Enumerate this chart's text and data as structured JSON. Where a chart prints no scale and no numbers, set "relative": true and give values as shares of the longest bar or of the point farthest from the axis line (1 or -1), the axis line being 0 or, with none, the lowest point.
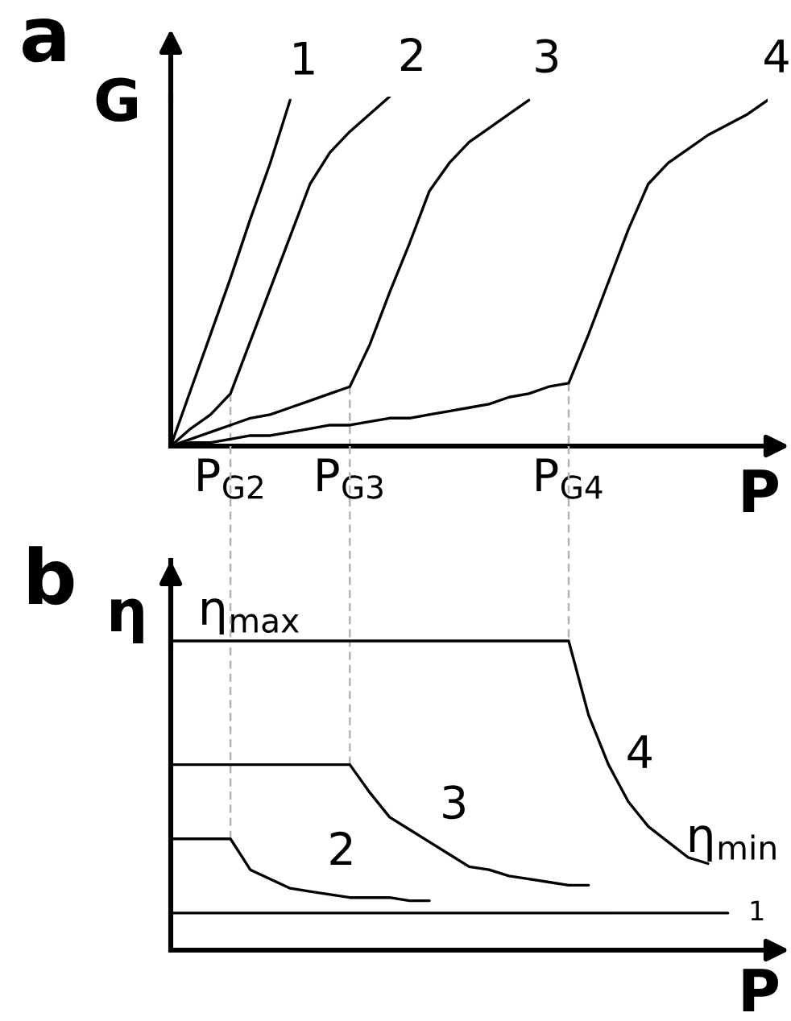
{
  "chart_data": [
    {
      "type": "line",
      "title": "a",
      "xlabel": "P",
      "ylabel": "G",
      "relative": true,
      "tick_labels": "x",
      "categories": [
        null,
        null,
        null,
        "P$_{G2}$",
        null,
        null,
        null,
        null,
        null,
        "P$_{G3}$",
        null,
        null,
        null,
        null,
        null,
        null,
        null,
        null,
        null,
        null,
        "P$_{G4}$",
        null,
        null,
        null,
        null,
        null,
        null,
        null,
        null,
        null,
        null
      ],
      "ref_lines": [
        {
          "axis": "x",
          "value": "P$_{G2}$",
          "color": "#b3b3b3",
          "line_style": "dashed"
        },
        {
          "axis": "x",
          "value": "P$_{G3}$",
          "color": "#b3b3b3",
          "line_style": "dashed"
        },
        {
          "axis": "x",
          "value": "P$_{G4}$",
          "color": "#b3b3b3",
          "line_style": "dashed"
        }
      ],
      "series": [
        {
          "name": "1",
          "color": "#000000",
          "values": [
            0,
            0.16,
            0.32,
            0.48,
            0.65,
            0.81,
            0.99,
            null,
            null,
            null,
            null,
            null,
            null,
            null,
            null,
            null,
            null,
            null,
            null,
            null,
            null,
            null,
            null,
            null,
            null,
            null,
            null,
            null,
            null,
            null,
            null
          ]
        },
        {
          "name": "2",
          "color": "#000000",
          "values": [
            0,
            0.05,
            0.09,
            0.15,
            0.3,
            0.45,
            0.6,
            0.75,
            0.84,
            0.9,
            0.95,
            1,
            null,
            null,
            null,
            null,
            null,
            null,
            null,
            null,
            null,
            null,
            null,
            null,
            null,
            null,
            null,
            null,
            null,
            null,
            null
          ]
        },
        {
          "name": "3",
          "color": "#000000",
          "values": [
            0,
            0.02,
            0.04,
            0.06,
            0.08,
            0.09,
            0.11,
            0.13,
            0.15,
            0.17,
            0.29,
            0.44,
            0.58,
            0.73,
            0.81,
            0.87,
            0.91,
            0.95,
            0.99,
            null,
            null,
            null,
            null,
            null,
            null,
            null,
            null,
            null,
            null,
            null,
            null
          ]
        },
        {
          "name": "4",
          "color": "#000000",
          "values": [
            0,
            0.01,
            0.01,
            0.02,
            0.03,
            0.03,
            0.04,
            0.05,
            0.06,
            0.06,
            0.07,
            0.08,
            0.08,
            0.09,
            0.1,
            0.11,
            0.12,
            0.14,
            0.15,
            0.17,
            0.18,
            0.32,
            0.47,
            0.62,
            0.75,
            0.81,
            0.85,
            0.89,
            0.92,
            0.95,
            0.99
          ]
        }
      ]
    },
    {
      "type": "line",
      "title": "b",
      "xlabel": "P",
      "ylabel": "η",
      "relative": true,
      "tick_labels": false,
      "categories": [
        null,
        null,
        null,
        "P$_{G2}$",
        null,
        null,
        null,
        null,
        null,
        "P$_{G3}$",
        null,
        null,
        null,
        null,
        null,
        null,
        null,
        null,
        null,
        null,
        "P$_{G4}$",
        null,
        null,
        null,
        null,
        null,
        null,
        null,
        null,
        null,
        null
      ],
      "ref_lines": [
        {
          "axis": "x",
          "value": "P$_{G2}$",
          "color": "#b3b3b3",
          "line_style": "dashed"
        },
        {
          "axis": "x",
          "value": "P$_{G3}$",
          "color": "#b3b3b3",
          "line_style": "dashed"
        }
      ],
      "annotations": [
        {
          "text": "η$_{max}$",
          "y": 1
        },
        "η$_{min}$"
      ],
      "series": [
        {
          "name": "1",
          "color": "#000000",
          "values": [
            0.12,
            0.12,
            0.12,
            0.12,
            0.12,
            0.12,
            0.12,
            0.12,
            0.12,
            0.12,
            0.12,
            0.12,
            0.12,
            0.12,
            0.12,
            0.12,
            0.12,
            0.12,
            0.12,
            0.12,
            0.12,
            0.12,
            0.12,
            0.12,
            0.12,
            0.12,
            0.12,
            0.12,
            0.12,
            null,
            null
          ]
        },
        {
          "name": "2",
          "color": "#000000",
          "values": [
            0.36,
            0.36,
            0.36,
            0.36,
            0.26,
            0.23,
            0.2,
            0.19,
            0.18,
            0.17,
            0.17,
            0.17,
            0.16,
            0.16,
            null,
            null,
            null,
            null,
            null,
            null,
            null,
            null,
            null,
            null,
            null,
            null,
            null,
            null,
            null,
            null,
            null
          ]
        },
        {
          "name": "3",
          "color": "#000000",
          "values": [
            0.6,
            0.6,
            0.6,
            0.6,
            0.6,
            0.6,
            0.6,
            0.6,
            0.6,
            0.6,
            0.51,
            0.43,
            0.39,
            0.35,
            0.31,
            0.27,
            0.26,
            0.24,
            0.23,
            0.22,
            0.21,
            0.21,
            null,
            null,
            null,
            null,
            null,
            null,
            null,
            null,
            null
          ]
        },
        {
          "name": "4",
          "color": "#000000",
          "values": [
            1,
            1,
            1,
            1,
            1,
            1,
            1,
            1,
            1,
            1,
            1,
            1,
            1,
            1,
            1,
            1,
            1,
            1,
            1,
            1,
            1,
            0.76,
            0.6,
            0.48,
            0.4,
            0.35,
            0.3,
            0.28,
            null,
            null,
            null
          ]
        }
      ]
    }
  ]
}
